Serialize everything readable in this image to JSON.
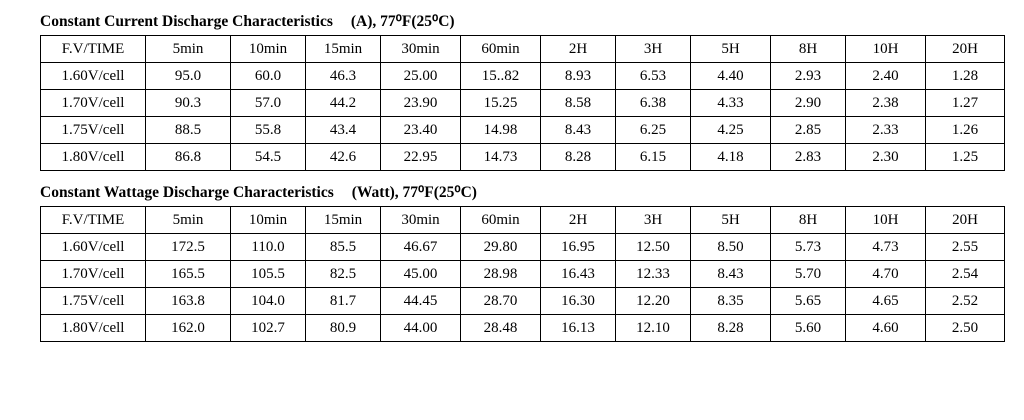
{
  "sections": [
    {
      "title": "Constant Current Discharge Characteristics",
      "unit": "(A), 77⁰F(25⁰C)",
      "header": [
        "F.V/TIME",
        "5min",
        "10min",
        "15min",
        "30min",
        "60min",
        "2H",
        "3H",
        "5H",
        "8H",
        "10H",
        "20H"
      ],
      "rows": [
        [
          "1.60V/cell",
          "95.0",
          "60.0",
          "46.3",
          "25.00",
          "15..82",
          "8.93",
          "6.53",
          "4.40",
          "2.93",
          "2.40",
          "1.28"
        ],
        [
          "1.70V/cell",
          "90.3",
          "57.0",
          "44.2",
          "23.90",
          "15.25",
          "8.58",
          "6.38",
          "4.33",
          "2.90",
          "2.38",
          "1.27"
        ],
        [
          "1.75V/cell",
          "88.5",
          "55.8",
          "43.4",
          "23.40",
          "14.98",
          "8.43",
          "6.25",
          "4.25",
          "2.85",
          "2.33",
          "1.26"
        ],
        [
          "1.80V/cell",
          "86.8",
          "54.5",
          "42.6",
          "22.95",
          "14.73",
          "8.28",
          "6.15",
          "4.18",
          "2.83",
          "2.30",
          "1.25"
        ]
      ]
    },
    {
      "title": "Constant Wattage Discharge Characteristics",
      "unit": "(Watt), 77⁰F(25⁰C)",
      "header": [
        "F.V/TIME",
        "5min",
        "10min",
        "15min",
        "30min",
        "60min",
        "2H",
        "3H",
        "5H",
        "8H",
        "10H",
        "20H"
      ],
      "rows": [
        [
          "1.60V/cell",
          "172.5",
          "110.0",
          "85.5",
          "46.67",
          "29.80",
          "16.95",
          "12.50",
          "8.50",
          "5.73",
          "4.73",
          "2.55"
        ],
        [
          "1.70V/cell",
          "165.5",
          "105.5",
          "82.5",
          "45.00",
          "28.98",
          "16.43",
          "12.33",
          "8.43",
          "5.70",
          "4.70",
          "2.54"
        ],
        [
          "1.75V/cell",
          "163.8",
          "104.0",
          "81.7",
          "44.45",
          "28.70",
          "16.30",
          "12.20",
          "8.35",
          "5.65",
          "4.65",
          "2.52"
        ],
        [
          "1.80V/cell",
          "162.0",
          "102.7",
          "80.9",
          "44.00",
          "28.48",
          "16.13",
          "12.10",
          "8.28",
          "5.60",
          "4.60",
          "2.50"
        ]
      ]
    }
  ]
}
